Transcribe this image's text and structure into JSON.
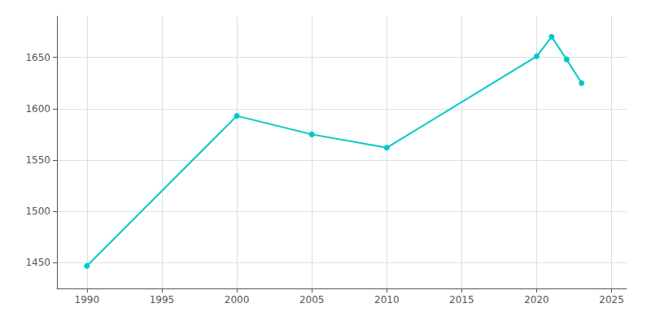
{
  "chart_data": {
    "type": "line",
    "x": [
      1990,
      2000,
      2005,
      2010,
      2020,
      2021,
      2022,
      2023
    ],
    "values": [
      1447,
      1593,
      1575,
      1562,
      1651,
      1670,
      1648,
      1625
    ],
    "color": "#00c8c8",
    "marker": "circle",
    "xlim": [
      1988,
      2026
    ],
    "xticks": [
      1990,
      1995,
      2000,
      2005,
      2010,
      2015,
      2020,
      2025
    ],
    "ylim": [
      1425,
      1690
    ],
    "yticks": [
      1450,
      1500,
      1550,
      1600,
      1650
    ],
    "grid": true
  }
}
